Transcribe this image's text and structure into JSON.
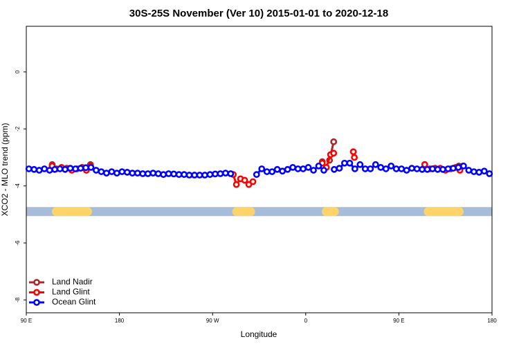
{
  "chart_data": {
    "type": "line",
    "title": "30S-25S November (Ver 10)   2015-01-01 to 2020-12-18",
    "xlabel": "Longitude",
    "ylabel": "XCO2 - MLO trend (ppm)",
    "xlim": [
      90,
      540
    ],
    "ylim": [
      -8.45,
      1.6
    ],
    "xticks": [
      {
        "value": 90,
        "label": "90 E"
      },
      180,
      {
        "value": 270,
        "label": "90 W"
      },
      {
        "value": 360,
        "label": "0"
      },
      {
        "value": 450,
        "label": "90 E"
      },
      {
        "value": 540,
        "label": "180"
      }
    ],
    "yticks": [
      0,
      -2,
      -4,
      -6,
      -8
    ],
    "legend": "bottom-left",
    "band": {
      "y": -4.9,
      "color": "#a7bcd9",
      "land_color": "#fcd46a",
      "land": [
        [
          114.7,
          153.5
        ],
        [
          289,
          311
        ],
        [
          375.5,
          392
        ],
        [
          474,
          512.6
        ]
      ]
    },
    "series": [
      {
        "name": "Land Nadir",
        "color": "#a52a2a",
        "x": [
          115,
          130,
          152,
          300,
          376,
          380,
          383,
          387,
          430,
          475,
          490,
          508
        ],
        "values": [
          -3.25,
          null,
          -3.25,
          null,
          -3.15,
          null,
          -3.1,
          -2.45,
          null,
          -3.25,
          null,
          -3.3
        ]
      },
      {
        "name": "Land Glint",
        "color": "#ff0000",
        "x": [
          115,
          119,
          124,
          129,
          134,
          139,
          144,
          148,
          152,
          220,
          290,
          293,
          297,
          301,
          305,
          309,
          340,
          376,
          380,
          384,
          387,
          395,
          406,
          407,
          450,
          475,
          480,
          485,
          490,
          495,
          500,
          505,
          509,
          512
        ],
        "values": [
          -3.3,
          -3.4,
          -3.35,
          -3.38,
          -3.45,
          -3.4,
          -3.35,
          -3.45,
          -3.3,
          null,
          -3.6,
          -3.95,
          -3.75,
          -3.8,
          -3.95,
          -3.85,
          null,
          -3.2,
          -3.35,
          -2.9,
          -2.85,
          null,
          -2.8,
          -3.0,
          null,
          -3.25,
          -3.4,
          -3.38,
          -3.38,
          -3.45,
          -3.4,
          -3.35,
          -3.45,
          -3.3
        ]
      },
      {
        "name": "Ocean Glint",
        "color": "#0000ff",
        "x": [
          92.5,
          97.5,
          102.5,
          107.5,
          112.5,
          117.5,
          122.5,
          127.5,
          132.5,
          137.5,
          142.5,
          147.5,
          152.5,
          157.5,
          162.5,
          167.5,
          172.5,
          177.5,
          182.5,
          187.5,
          192.5,
          197.5,
          202.5,
          207.5,
          212.5,
          217.5,
          222.5,
          227.5,
          232.5,
          237.5,
          242.5,
          247.5,
          252.5,
          257.5,
          262.5,
          267.5,
          272.5,
          277.5,
          282.5,
          287.5,
          292.5,
          312.5,
          317.5,
          322.5,
          327.5,
          332.5,
          337.5,
          342.5,
          347.5,
          352.5,
          357.5,
          362.5,
          367.5,
          372.5,
          377.5,
          382.5,
          387.5,
          392.5,
          397.5,
          402.5,
          407.5,
          412.5,
          417.5,
          422.5,
          427.5,
          432.5,
          437.5,
          442.5,
          447.5,
          452.5,
          457.5,
          462.5,
          467.5,
          472.5,
          477.5,
          482.5,
          487.5,
          492.5,
          497.5,
          502.5,
          507.5,
          512.5,
          517.5,
          522.5,
          527.5,
          532.5,
          537.5
        ],
        "values": [
          -3.4,
          -3.42,
          -3.45,
          -3.4,
          -3.45,
          -3.42,
          -3.4,
          -3.42,
          -3.38,
          -3.4,
          -3.38,
          -3.36,
          -3.35,
          -3.45,
          -3.5,
          -3.55,
          -3.5,
          -3.55,
          -3.5,
          -3.52,
          -3.55,
          -3.55,
          -3.57,
          -3.57,
          -3.55,
          -3.57,
          -3.6,
          -3.57,
          -3.58,
          -3.6,
          -3.6,
          -3.62,
          -3.62,
          -3.62,
          -3.62,
          -3.6,
          -3.58,
          -3.57,
          -3.55,
          -3.57,
          null,
          -3.6,
          -3.4,
          -3.5,
          -3.5,
          -3.42,
          -3.48,
          -3.42,
          -3.35,
          -3.4,
          -3.4,
          -3.35,
          -3.45,
          -3.3,
          -3.45,
          null,
          -3.42,
          -3.38,
          -3.2,
          -3.2,
          -3.4,
          -3.25,
          -3.4,
          -3.4,
          -3.25,
          -3.35,
          -3.4,
          -3.3,
          -3.4,
          -3.4,
          -3.45,
          -3.38,
          -3.4,
          -3.42,
          -3.42,
          -3.4,
          -3.42,
          -3.42,
          -3.4,
          -3.38,
          -3.35,
          -3.3,
          -3.45,
          -3.5,
          -3.52,
          -3.48,
          -3.57
        ]
      }
    ]
  }
}
